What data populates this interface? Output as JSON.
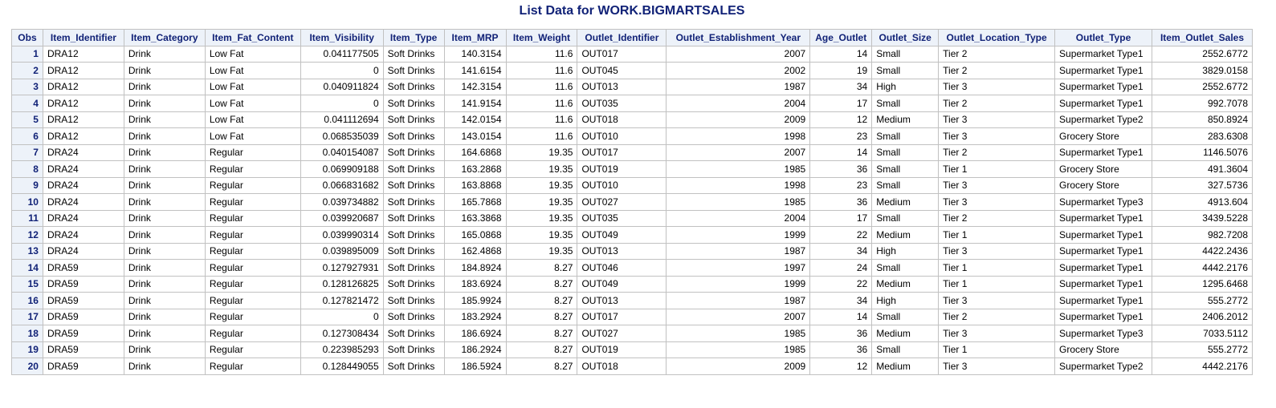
{
  "title": "List Data for WORK.BIGMARTSALES",
  "columns": [
    {
      "label": "Obs",
      "align": "obs"
    },
    {
      "label": "Item_Identifier",
      "align": "txt"
    },
    {
      "label": "Item_Category",
      "align": "txt"
    },
    {
      "label": "Item_Fat_Content",
      "align": "txt"
    },
    {
      "label": "Item_Visibility",
      "align": "num"
    },
    {
      "label": "Item_Type",
      "align": "txt"
    },
    {
      "label": "Item_MRP",
      "align": "num"
    },
    {
      "label": "Item_Weight",
      "align": "num"
    },
    {
      "label": "Outlet_Identifier",
      "align": "txt"
    },
    {
      "label": "Outlet_Establishment_Year",
      "align": "num"
    },
    {
      "label": "Age_Outlet",
      "align": "num"
    },
    {
      "label": "Outlet_Size",
      "align": "txt"
    },
    {
      "label": "Outlet_Location_Type",
      "align": "txt"
    },
    {
      "label": "Outlet_Type",
      "align": "txt"
    },
    {
      "label": "Item_Outlet_Sales",
      "align": "num"
    }
  ],
  "rows": [
    [
      "1",
      "DRA12",
      "Drink",
      "Low Fat",
      "0.041177505",
      "Soft Drinks",
      "140.3154",
      "11.6",
      "OUT017",
      "2007",
      "14",
      "Small",
      "Tier 2",
      "Supermarket Type1",
      "2552.6772"
    ],
    [
      "2",
      "DRA12",
      "Drink",
      "Low Fat",
      "0",
      "Soft Drinks",
      "141.6154",
      "11.6",
      "OUT045",
      "2002",
      "19",
      "Small",
      "Tier 2",
      "Supermarket Type1",
      "3829.0158"
    ],
    [
      "3",
      "DRA12",
      "Drink",
      "Low Fat",
      "0.040911824",
      "Soft Drinks",
      "142.3154",
      "11.6",
      "OUT013",
      "1987",
      "34",
      "High",
      "Tier 3",
      "Supermarket Type1",
      "2552.6772"
    ],
    [
      "4",
      "DRA12",
      "Drink",
      "Low Fat",
      "0",
      "Soft Drinks",
      "141.9154",
      "11.6",
      "OUT035",
      "2004",
      "17",
      "Small",
      "Tier 2",
      "Supermarket Type1",
      "992.7078"
    ],
    [
      "5",
      "DRA12",
      "Drink",
      "Low Fat",
      "0.041112694",
      "Soft Drinks",
      "142.0154",
      "11.6",
      "OUT018",
      "2009",
      "12",
      "Medium",
      "Tier 3",
      "Supermarket Type2",
      "850.8924"
    ],
    [
      "6",
      "DRA12",
      "Drink",
      "Low Fat",
      "0.068535039",
      "Soft Drinks",
      "143.0154",
      "11.6",
      "OUT010",
      "1998",
      "23",
      "Small",
      "Tier 3",
      "Grocery Store",
      "283.6308"
    ],
    [
      "7",
      "DRA24",
      "Drink",
      "Regular",
      "0.040154087",
      "Soft Drinks",
      "164.6868",
      "19.35",
      "OUT017",
      "2007",
      "14",
      "Small",
      "Tier 2",
      "Supermarket Type1",
      "1146.5076"
    ],
    [
      "8",
      "DRA24",
      "Drink",
      "Regular",
      "0.069909188",
      "Soft Drinks",
      "163.2868",
      "19.35",
      "OUT019",
      "1985",
      "36",
      "Small",
      "Tier 1",
      "Grocery Store",
      "491.3604"
    ],
    [
      "9",
      "DRA24",
      "Drink",
      "Regular",
      "0.066831682",
      "Soft Drinks",
      "163.8868",
      "19.35",
      "OUT010",
      "1998",
      "23",
      "Small",
      "Tier 3",
      "Grocery Store",
      "327.5736"
    ],
    [
      "10",
      "DRA24",
      "Drink",
      "Regular",
      "0.039734882",
      "Soft Drinks",
      "165.7868",
      "19.35",
      "OUT027",
      "1985",
      "36",
      "Medium",
      "Tier 3",
      "Supermarket Type3",
      "4913.604"
    ],
    [
      "11",
      "DRA24",
      "Drink",
      "Regular",
      "0.039920687",
      "Soft Drinks",
      "163.3868",
      "19.35",
      "OUT035",
      "2004",
      "17",
      "Small",
      "Tier 2",
      "Supermarket Type1",
      "3439.5228"
    ],
    [
      "12",
      "DRA24",
      "Drink",
      "Regular",
      "0.039990314",
      "Soft Drinks",
      "165.0868",
      "19.35",
      "OUT049",
      "1999",
      "22",
      "Medium",
      "Tier 1",
      "Supermarket Type1",
      "982.7208"
    ],
    [
      "13",
      "DRA24",
      "Drink",
      "Regular",
      "0.039895009",
      "Soft Drinks",
      "162.4868",
      "19.35",
      "OUT013",
      "1987",
      "34",
      "High",
      "Tier 3",
      "Supermarket Type1",
      "4422.2436"
    ],
    [
      "14",
      "DRA59",
      "Drink",
      "Regular",
      "0.127927931",
      "Soft Drinks",
      "184.8924",
      "8.27",
      "OUT046",
      "1997",
      "24",
      "Small",
      "Tier 1",
      "Supermarket Type1",
      "4442.2176"
    ],
    [
      "15",
      "DRA59",
      "Drink",
      "Regular",
      "0.128126825",
      "Soft Drinks",
      "183.6924",
      "8.27",
      "OUT049",
      "1999",
      "22",
      "Medium",
      "Tier 1",
      "Supermarket Type1",
      "1295.6468"
    ],
    [
      "16",
      "DRA59",
      "Drink",
      "Regular",
      "0.127821472",
      "Soft Drinks",
      "185.9924",
      "8.27",
      "OUT013",
      "1987",
      "34",
      "High",
      "Tier 3",
      "Supermarket Type1",
      "555.2772"
    ],
    [
      "17",
      "DRA59",
      "Drink",
      "Regular",
      "0",
      "Soft Drinks",
      "183.2924",
      "8.27",
      "OUT017",
      "2007",
      "14",
      "Small",
      "Tier 2",
      "Supermarket Type1",
      "2406.2012"
    ],
    [
      "18",
      "DRA59",
      "Drink",
      "Regular",
      "0.127308434",
      "Soft Drinks",
      "186.6924",
      "8.27",
      "OUT027",
      "1985",
      "36",
      "Medium",
      "Tier 3",
      "Supermarket Type3",
      "7033.5112"
    ],
    [
      "19",
      "DRA59",
      "Drink",
      "Regular",
      "0.223985293",
      "Soft Drinks",
      "186.2924",
      "8.27",
      "OUT019",
      "1985",
      "36",
      "Small",
      "Tier 1",
      "Grocery Store",
      "555.2772"
    ],
    [
      "20",
      "DRA59",
      "Drink",
      "Regular",
      "0.128449055",
      "Soft Drinks",
      "186.5924",
      "8.27",
      "OUT018",
      "2009",
      "12",
      "Medium",
      "Tier 3",
      "Supermarket Type2",
      "4442.2176"
    ]
  ],
  "colors": {
    "header_text": "#112277",
    "header_background": "#edf2f9",
    "grid_lines": "#c1c1c1"
  }
}
